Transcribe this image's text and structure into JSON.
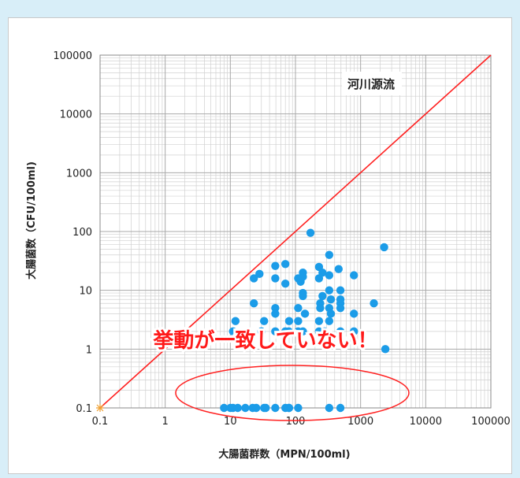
{
  "chart_data": {
    "type": "scatter",
    "xlabel": "大腸菌群数（MPN/100ml)",
    "ylabel": "大腸菌数（CFU/100ml)",
    "x_scale": "log",
    "y_scale": "log",
    "xlim": [
      0.1,
      100000
    ],
    "ylim": [
      0.1,
      100000
    ],
    "x_ticks": [
      "0.1",
      "1",
      "10",
      "100",
      "1000",
      "10000",
      "100000"
    ],
    "y_ticks": [
      "0.1",
      "1",
      "10",
      "100",
      "1000",
      "10000",
      "100000"
    ],
    "grid": true,
    "legend": "none",
    "panel_label": "河川源流",
    "annotation": "挙動が一致していない！",
    "reference_line": {
      "color": "#ff2020",
      "points": [
        [
          0.1,
          0.1
        ],
        [
          100000,
          100000
        ]
      ]
    },
    "colors": {
      "points": "#1b9ce8",
      "line": "#ff2020",
      "annotation": "#ff1a1a",
      "ellipse": "#ff2020",
      "grid": "#d0d0d0"
    },
    "points": [
      [
        0.1,
        0.1
      ],
      [
        8,
        0.1
      ],
      [
        10,
        0.1
      ],
      [
        11,
        0.1
      ],
      [
        13,
        0.1
      ],
      [
        17,
        0.1
      ],
      [
        22,
        0.1
      ],
      [
        25,
        0.1
      ],
      [
        33,
        0.1
      ],
      [
        35,
        0.1
      ],
      [
        49,
        0.1
      ],
      [
        70,
        0.1
      ],
      [
        79,
        0.1
      ],
      [
        80,
        0.1
      ],
      [
        110,
        0.1
      ],
      [
        330,
        0.1
      ],
      [
        490,
        0.1
      ],
      [
        11,
        2
      ],
      [
        12,
        3
      ],
      [
        23,
        16
      ],
      [
        23,
        6
      ],
      [
        28,
        19
      ],
      [
        30,
        2
      ],
      [
        33,
        3
      ],
      [
        49,
        26
      ],
      [
        49,
        16
      ],
      [
        49,
        5
      ],
      [
        49,
        4
      ],
      [
        49,
        2
      ],
      [
        70,
        28
      ],
      [
        70,
        13
      ],
      [
        70,
        2
      ],
      [
        79,
        2
      ],
      [
        80,
        3
      ],
      [
        110,
        16
      ],
      [
        110,
        5
      ],
      [
        110,
        3
      ],
      [
        110,
        2
      ],
      [
        120,
        14
      ],
      [
        130,
        20
      ],
      [
        130,
        17
      ],
      [
        130,
        9
      ],
      [
        130,
        8
      ],
      [
        130,
        2
      ],
      [
        140,
        4
      ],
      [
        170,
        95
      ],
      [
        230,
        25
      ],
      [
        230,
        16
      ],
      [
        230,
        3
      ],
      [
        230,
        2
      ],
      [
        240,
        6
      ],
      [
        240,
        5
      ],
      [
        260,
        20
      ],
      [
        260,
        8
      ],
      [
        280,
        2
      ],
      [
        330,
        40
      ],
      [
        330,
        18
      ],
      [
        330,
        10
      ],
      [
        330,
        5
      ],
      [
        330,
        3
      ],
      [
        350,
        7
      ],
      [
        350,
        4
      ],
      [
        460,
        23
      ],
      [
        490,
        10
      ],
      [
        490,
        7
      ],
      [
        490,
        6
      ],
      [
        490,
        5
      ],
      [
        490,
        2
      ],
      [
        790,
        18
      ],
      [
        790,
        4
      ],
      [
        790,
        2
      ],
      [
        1600,
        6
      ],
      [
        2300,
        54
      ],
      [
        2400,
        1
      ]
    ]
  }
}
